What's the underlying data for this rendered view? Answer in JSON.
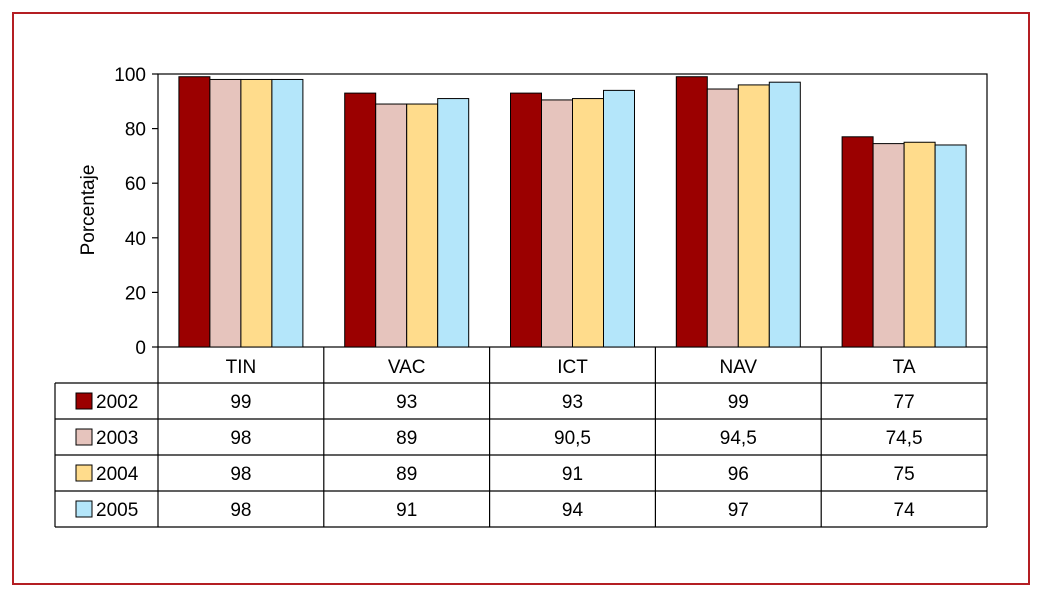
{
  "chart_data": {
    "type": "bar",
    "title": "",
    "xlabel": "",
    "ylabel": "Porcentaje",
    "ylim": [
      0,
      100
    ],
    "yticks": [
      0,
      20,
      40,
      60,
      80,
      100
    ],
    "ytick_labels": [
      "0",
      "20",
      "40",
      "60",
      "80",
      "100"
    ],
    "categories": [
      "TIN",
      "VAC",
      "ICT",
      "NAV",
      "TA"
    ],
    "grid": false,
    "legend_placement": "data-table-left",
    "series": [
      {
        "name": "2002",
        "color": "#9b0000",
        "values": [
          99,
          93,
          93,
          99,
          77
        ],
        "labels": [
          "99",
          "93",
          "93",
          "99",
          "77"
        ]
      },
      {
        "name": "2003",
        "color": "#e6c4bd",
        "values": [
          98,
          89,
          90.5,
          94.5,
          74.5
        ],
        "labels": [
          "98",
          "89",
          "90,5",
          "94,5",
          "74,5"
        ]
      },
      {
        "name": "2004",
        "color": "#ffdc8c",
        "values": [
          98,
          89,
          91,
          96,
          75
        ],
        "labels": [
          "98",
          "89",
          "91",
          "96",
          "75"
        ]
      },
      {
        "name": "2005",
        "color": "#b4e6fa",
        "values": [
          98,
          91,
          94,
          97,
          74
        ],
        "labels": [
          "98",
          "91",
          "94",
          "97",
          "74"
        ]
      }
    ]
  }
}
